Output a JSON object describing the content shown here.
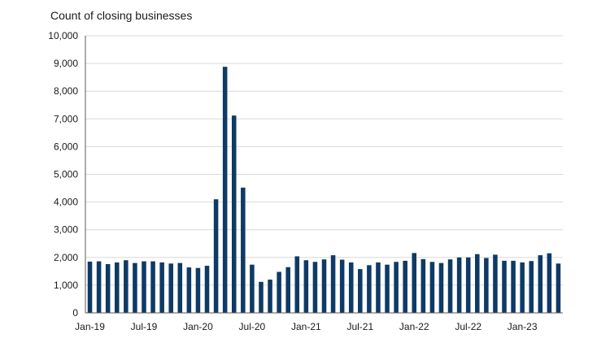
{
  "chart_data": {
    "type": "bar",
    "title": "Count of closing businesses",
    "xlabel": "",
    "ylabel": "",
    "ylim": [
      0,
      10000
    ],
    "yticks": [
      "0",
      "1,000",
      "2,000",
      "3,000",
      "4,000",
      "5,000",
      "6,000",
      "7,000",
      "8,000",
      "9,000",
      "10,000"
    ],
    "xtick_labels": [
      "Jan-19",
      "Jul-19",
      "Jan-20",
      "Jul-20",
      "Jan-21",
      "Jul-21",
      "Jan-22",
      "Jul-22",
      "Jan-23"
    ],
    "grid": true,
    "bar_color": "#0e3a66",
    "categories": [
      "Jan-19",
      "Feb-19",
      "Mar-19",
      "Apr-19",
      "May-19",
      "Jun-19",
      "Jul-19",
      "Aug-19",
      "Sep-19",
      "Oct-19",
      "Nov-19",
      "Dec-19",
      "Jan-20",
      "Feb-20",
      "Mar-20",
      "Apr-20",
      "May-20",
      "Jun-20",
      "Jul-20",
      "Aug-20",
      "Sep-20",
      "Oct-20",
      "Nov-20",
      "Dec-20",
      "Jan-21",
      "Feb-21",
      "Mar-21",
      "Apr-21",
      "May-21",
      "Jun-21",
      "Jul-21",
      "Aug-21",
      "Sep-21",
      "Oct-21",
      "Nov-21",
      "Dec-21",
      "Jan-22",
      "Feb-22",
      "Mar-22",
      "Apr-22",
      "May-22",
      "Jun-22",
      "Jul-22",
      "Aug-22",
      "Sep-22",
      "Oct-22",
      "Nov-22",
      "Dec-22",
      "Jan-23",
      "Feb-23",
      "Mar-23",
      "Apr-23",
      "May-23"
    ],
    "values": [
      1850,
      1860,
      1760,
      1820,
      1900,
      1800,
      1860,
      1860,
      1820,
      1780,
      1800,
      1640,
      1620,
      1700,
      4100,
      8880,
      7120,
      4520,
      1740,
      1120,
      1200,
      1480,
      1650,
      2040,
      1900,
      1840,
      1930,
      2080,
      1920,
      1820,
      1580,
      1720,
      1820,
      1740,
      1840,
      1880,
      2160,
      1940,
      1840,
      1800,
      1930,
      2000,
      2000,
      2120,
      1980,
      2100,
      1880,
      1880,
      1820,
      1870,
      2080,
      2150,
      1780
    ]
  }
}
